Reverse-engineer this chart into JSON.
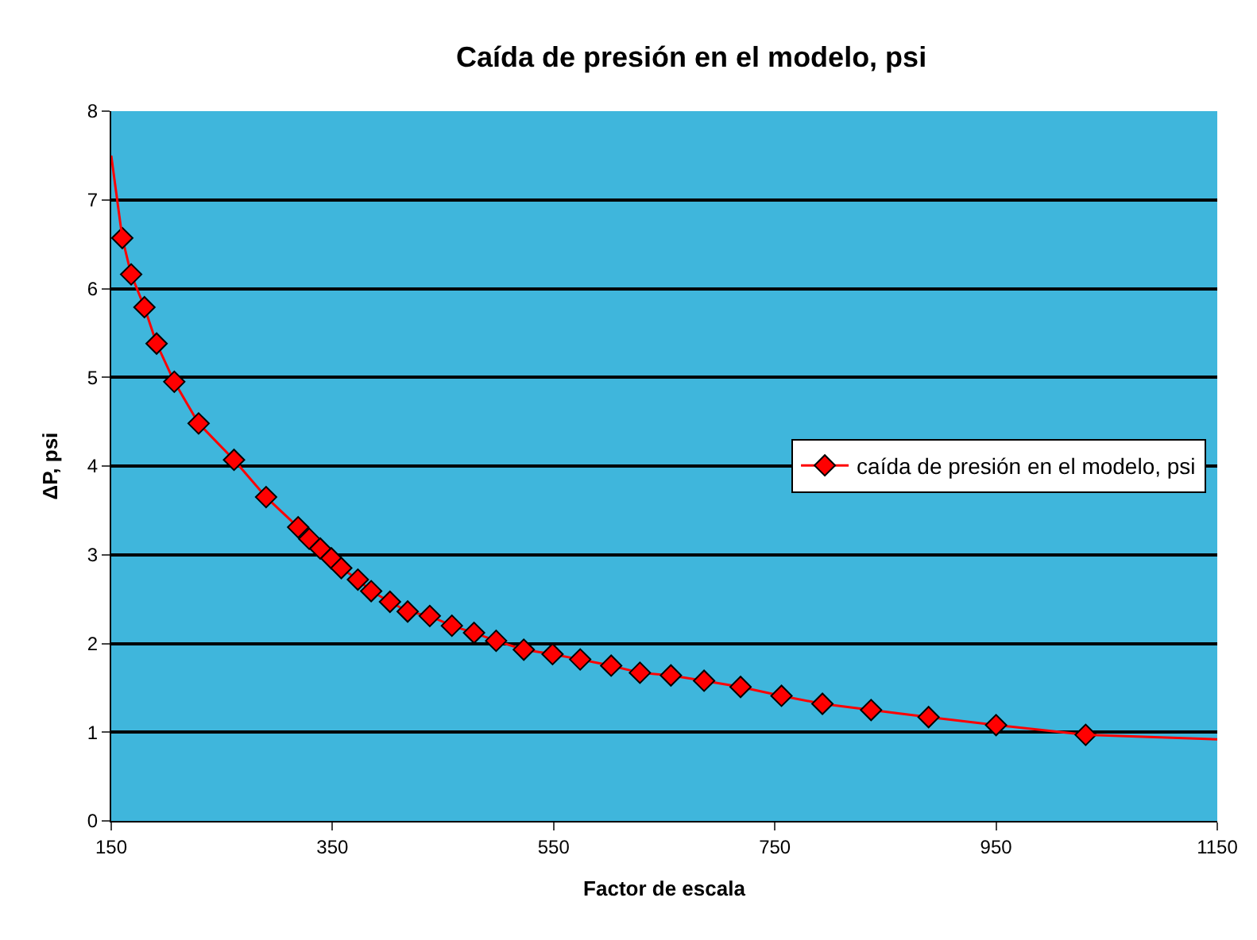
{
  "chart_data": {
    "type": "line",
    "title": "Caída de presión en el modelo, psi",
    "xlabel": "Factor de escala",
    "ylabel": "ΔP, psi",
    "xlim": [
      150,
      1150
    ],
    "xticks": [
      150,
      350,
      550,
      750,
      950,
      1150
    ],
    "ylim": [
      0,
      8
    ],
    "yticks": [
      0,
      1,
      2,
      3,
      4,
      5,
      6,
      7,
      8
    ],
    "grid": "y",
    "legend": "right",
    "marker": "diamond",
    "line_style": "solid",
    "series": [
      {
        "name": "caída de presión en el modelo, psi",
        "color": "#ff0000",
        "x": [
          160,
          168,
          180,
          191,
          207,
          229,
          261,
          290,
          319,
          329,
          339,
          349,
          358,
          373,
          385,
          402,
          418,
          438,
          458,
          478,
          498,
          523,
          549,
          574,
          602,
          628,
          656,
          686,
          719,
          756,
          793,
          837,
          889,
          950,
          1031
        ],
        "values": [
          6.57,
          6.16,
          5.79,
          5.38,
          4.95,
          4.48,
          4.07,
          3.65,
          3.31,
          3.18,
          3.07,
          2.96,
          2.85,
          2.72,
          2.59,
          2.47,
          2.36,
          2.31,
          2.2,
          2.12,
          2.03,
          1.93,
          1.88,
          1.82,
          1.75,
          1.67,
          1.64,
          1.58,
          1.51,
          1.41,
          1.32,
          1.25,
          1.17,
          1.08,
          0.97
        ]
      },
      {
        "type": "line",
        "color": "#ff0000",
        "marker": "none",
        "x": [
          150,
          160
        ],
        "values": [
          7.5,
          6.57
        ]
      },
      {
        "type": "line",
        "color": "#ff0000",
        "marker": "none",
        "x": [
          1031,
          1150
        ],
        "values": [
          0.97,
          0.92
        ]
      }
    ]
  }
}
